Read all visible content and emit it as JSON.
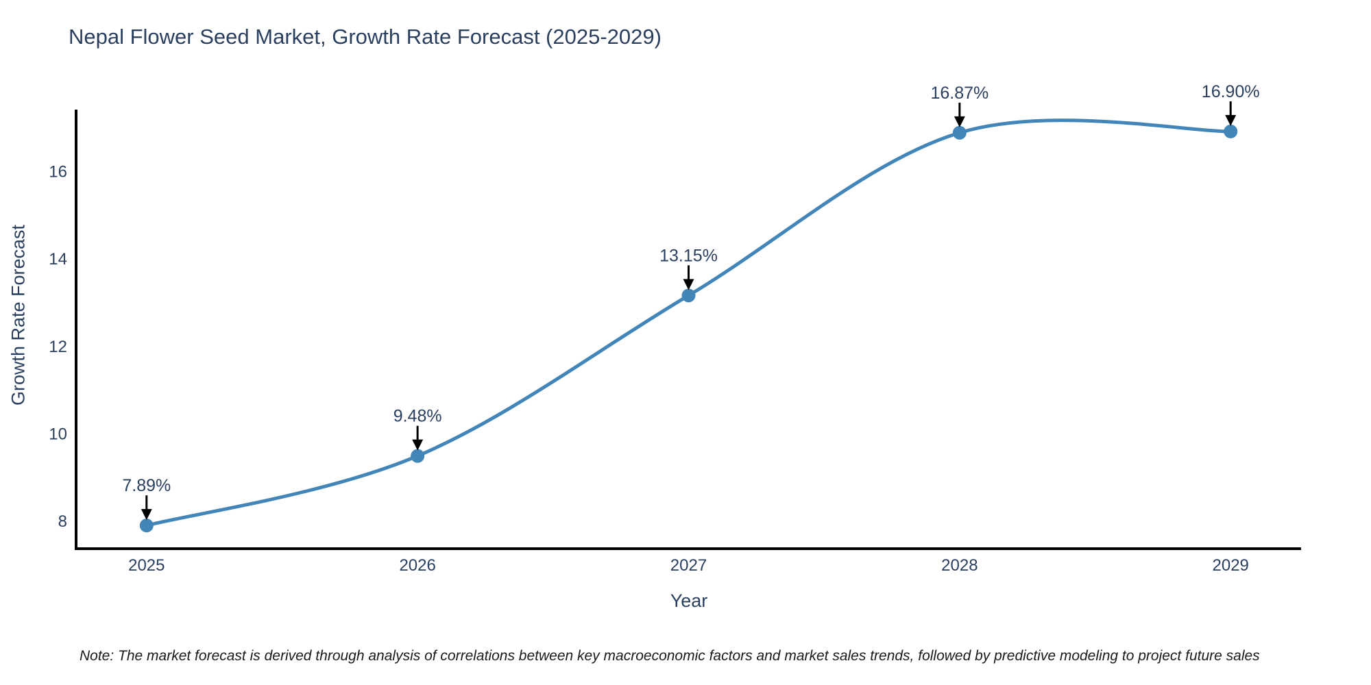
{
  "title": "Nepal Flower Seed Market, Growth Rate Forecast (2025-2029)",
  "note": "Note: The market forecast is derived through analysis of correlations between key macroeconomic factors and market sales trends, followed by predictive modeling to project future sales",
  "chart_data": {
    "type": "line",
    "title": "Nepal Flower Seed Market, Growth Rate Forecast (2025-2029)",
    "xlabel": "Year",
    "ylabel": "Growth Rate Forecast",
    "x": [
      2025,
      2026,
      2027,
      2028,
      2029
    ],
    "values": [
      7.89,
      9.48,
      13.15,
      16.87,
      16.9
    ],
    "point_labels": [
      "7.89%",
      "9.48%",
      "13.15%",
      "16.87%",
      "16.90%"
    ],
    "xticks": [
      "2025",
      "2026",
      "2027",
      "2028",
      "2029"
    ],
    "xtick_values": [
      2025,
      2026,
      2027,
      2028,
      2029
    ],
    "yticks": [
      "8",
      "10",
      "12",
      "14",
      "16"
    ],
    "ytick_values": [
      8,
      10,
      12,
      14,
      16
    ],
    "xlim": [
      2024.74,
      2029.26
    ],
    "ylim": [
      7.36,
      17.4
    ],
    "grid": false,
    "line_shape": "spline",
    "legend": "none",
    "colors": {
      "line": "#4285b8",
      "marker": "#4285b8",
      "axis": "#000000",
      "tick_text": "#2a3f5f",
      "annotation_text": "#2a3f5f",
      "arrow": "#000000",
      "background": "#ffffff"
    }
  }
}
